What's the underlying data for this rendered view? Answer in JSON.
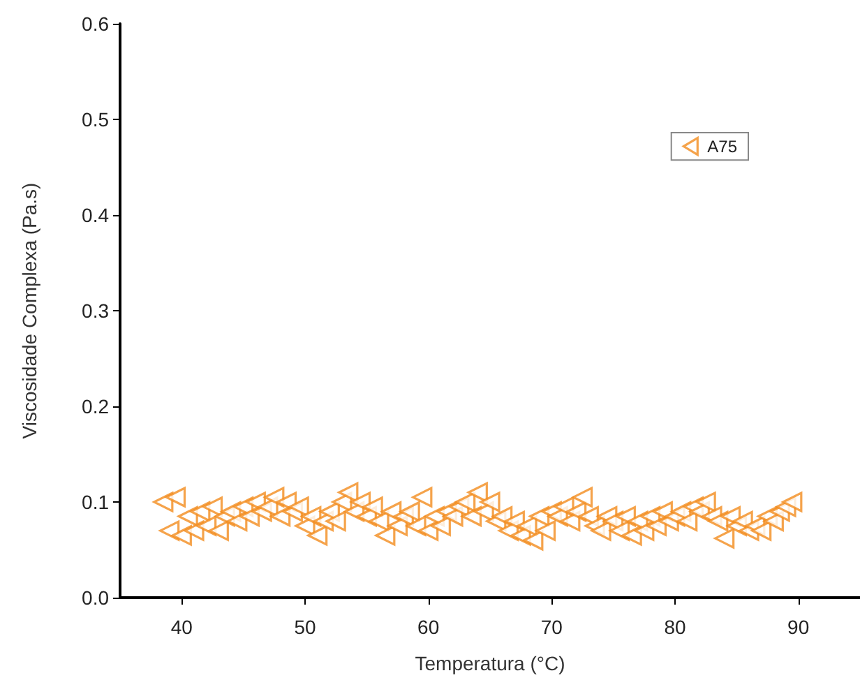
{
  "chart_data": {
    "type": "scatter",
    "xlabel": "Temperatura (°C)",
    "ylabel": "Viscosidade Complexa (Pa.s)",
    "xlim": [
      35,
      95
    ],
    "xticks": [
      40,
      50,
      60,
      70,
      80,
      90
    ],
    "ylim": [
      0,
      0.6
    ],
    "yticks": [
      {
        "value": 0,
        "label": "0.0"
      },
      0.1,
      0.2,
      0.3,
      0.4,
      0.5,
      0.6
    ],
    "grid": false,
    "legend": "top right",
    "marker": "triangle",
    "series": [
      {
        "name": "A75",
        "color": "#f28c1e",
        "x": [
          38.5,
          39,
          39.5,
          40,
          40.5,
          41,
          41.5,
          42,
          42.5,
          43,
          43.5,
          44,
          44.5,
          45,
          45.5,
          46,
          46.5,
          47,
          47.5,
          48,
          48.5,
          49,
          49.5,
          50,
          50.5,
          51,
          51.5,
          52,
          52.5,
          53,
          53.5,
          54,
          54.5,
          55,
          55.5,
          56,
          56.5,
          57,
          57.5,
          58,
          58.5,
          59,
          59.5,
          60,
          60.5,
          61,
          61.5,
          62,
          62.5,
          63,
          63.5,
          64,
          64.5,
          65,
          65.5,
          66,
          66.5,
          67,
          67.5,
          68,
          68.5,
          69,
          69.5,
          70,
          70.5,
          71,
          71.5,
          72,
          72.5,
          73,
          73.5,
          74,
          74.5,
          75,
          75.5,
          76,
          76.5,
          77,
          77.5,
          78,
          78.5,
          79,
          79.5,
          80,
          80.5,
          81,
          81.5,
          82,
          82.5,
          83,
          83.5,
          84,
          84.5,
          85,
          85.5,
          86,
          86.5,
          87,
          87.5,
          88,
          88.5,
          89,
          89.5
        ],
        "values": [
          0.1,
          0.07,
          0.105,
          0.065,
          0.085,
          0.07,
          0.09,
          0.075,
          0.095,
          0.07,
          0.085,
          0.09,
          0.08,
          0.095,
          0.085,
          0.1,
          0.09,
          0.095,
          0.105,
          0.085,
          0.1,
          0.09,
          0.095,
          0.075,
          0.085,
          0.065,
          0.08,
          0.09,
          0.08,
          0.1,
          0.11,
          0.09,
          0.1,
          0.085,
          0.095,
          0.08,
          0.065,
          0.09,
          0.075,
          0.085,
          0.09,
          0.075,
          0.105,
          0.07,
          0.085,
          0.075,
          0.09,
          0.085,
          0.095,
          0.1,
          0.085,
          0.11,
          0.09,
          0.1,
          0.08,
          0.085,
          0.07,
          0.08,
          0.065,
          0.075,
          0.06,
          0.085,
          0.07,
          0.09,
          0.085,
          0.095,
          0.08,
          0.09,
          0.105,
          0.085,
          0.075,
          0.07,
          0.085,
          0.08,
          0.07,
          0.085,
          0.065,
          0.08,
          0.07,
          0.085,
          0.075,
          0.09,
          0.08,
          0.085,
          0.09,
          0.08,
          0.095,
          0.09,
          0.1,
          0.085,
          0.08,
          0.062,
          0.085,
          0.075,
          0.08,
          0.07,
          0.075,
          0.07,
          0.085,
          0.08,
          0.09,
          0.095,
          0.1
        ]
      }
    ]
  }
}
